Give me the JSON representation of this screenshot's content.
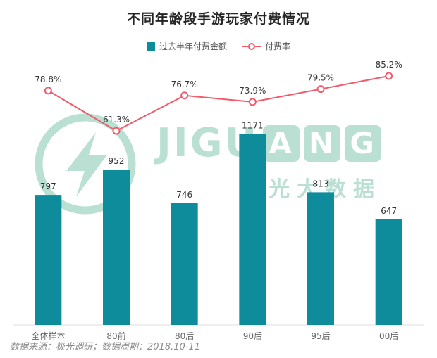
{
  "page": {
    "title": "不同年龄段手游玩家付费情况",
    "source_note": "数据来源：极光调研；数据周期：2018.10-11"
  },
  "legend": {
    "bar_label": "过去半年付费金额",
    "line_label": "付费率"
  },
  "watermark": {
    "brand_prefix": "JIGU",
    "brand_tiles": [
      "A",
      "N",
      "G"
    ],
    "brand_cn": "极光大数据"
  },
  "colors": {
    "bar": "#0E8C9C",
    "line": "#F15B6C",
    "watermark": "#B9E0D2",
    "axis": "#DDDDDD",
    "value_label": "#333333",
    "category_label": "#666666",
    "source": "#8A8A8A"
  },
  "chart_data": {
    "type": "bar+line",
    "title": "不同年龄段手游玩家付费情况",
    "categories": [
      "全体样本",
      "80前",
      "80后",
      "90后",
      "95后",
      "00后"
    ],
    "series": [
      {
        "name": "过去半年付费金额",
        "type": "bar",
        "values": [
          797,
          952,
          746,
          1171,
          813,
          647
        ]
      },
      {
        "name": "付费率",
        "type": "line",
        "unit": "%",
        "values": [
          78.8,
          61.3,
          76.7,
          73.9,
          79.5,
          85.2
        ]
      }
    ],
    "bar_ylim": [
      0,
      1250
    ],
    "line_ylim": [
      50,
      95
    ],
    "grid": false,
    "legend_position": "top",
    "xlabel": "",
    "ylabel": ""
  }
}
